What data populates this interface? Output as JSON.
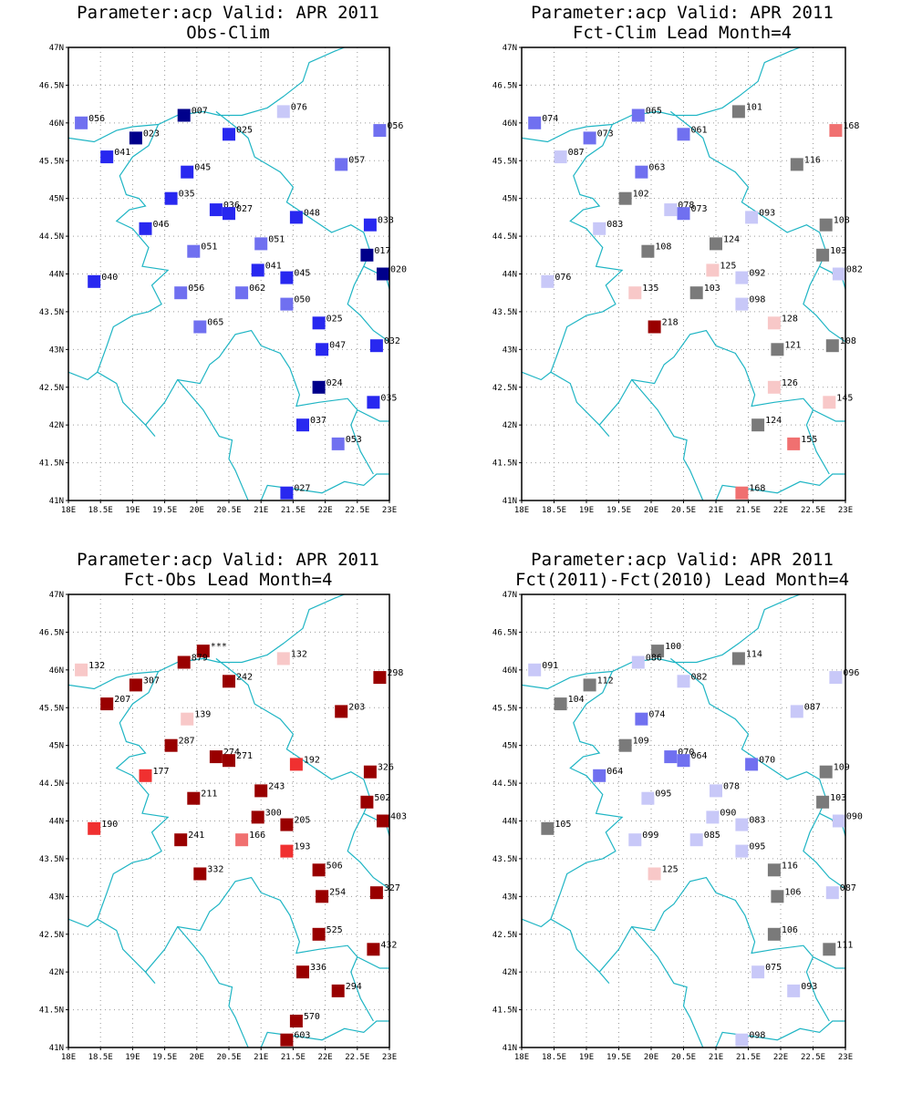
{
  "colors": {
    "coast": "#1fb5c4",
    "grid": "#9a9a9a",
    "frame": "#000000",
    "text": "#000000",
    "navy": "#00008b",
    "blue": "#2828f0",
    "mid_blue": "#7070f0",
    "light_blue": "#c8c8f8",
    "gray": "#7a7a7a",
    "light_pink": "#f8c8c8",
    "pink": "#f07070",
    "red": "#f03030",
    "dark_red": "#990000"
  },
  "axes": {
    "lon_ticks": [
      "18E",
      "18.5E",
      "19E",
      "19.5E",
      "20E",
      "20.5E",
      "21E",
      "21.5E",
      "22E",
      "22.5E",
      "23E"
    ],
    "lat_ticks": [
      "41N",
      "41.5N",
      "42N",
      "42.5N",
      "43N",
      "43.5N",
      "44N",
      "44.5N",
      "45N",
      "45.5N",
      "46N",
      "46.5N",
      "47N"
    ],
    "lon_range": [
      18,
      23
    ],
    "lat_range": [
      41,
      47
    ],
    "grid": true
  },
  "chart_data": [
    {
      "type": "map-station-plot",
      "title_line1": "Parameter:acp Valid: APR 2011",
      "title_line2": "Obs-Clim",
      "points": [
        {
          "lon": 18.2,
          "lat": 46.0,
          "color": "mid_blue",
          "label": "056"
        },
        {
          "lon": 19.05,
          "lat": 45.8,
          "color": "navy",
          "label": "023"
        },
        {
          "lon": 19.8,
          "lat": 46.1,
          "color": "navy",
          "label": "007"
        },
        {
          "lon": 20.5,
          "lat": 45.85,
          "color": "blue",
          "label": "025"
        },
        {
          "lon": 21.35,
          "lat": 46.15,
          "color": "light_blue",
          "label": "076"
        },
        {
          "lon": 22.85,
          "lat": 45.9,
          "color": "mid_blue",
          "label": "056"
        },
        {
          "lon": 18.6,
          "lat": 45.55,
          "color": "blue",
          "label": "041"
        },
        {
          "lon": 19.85,
          "lat": 45.35,
          "color": "blue",
          "label": "045"
        },
        {
          "lon": 22.25,
          "lat": 45.45,
          "color": "mid_blue",
          "label": "057"
        },
        {
          "lon": 19.6,
          "lat": 45.0,
          "color": "blue",
          "label": "035"
        },
        {
          "lon": 20.3,
          "lat": 44.85,
          "color": "blue",
          "label": "036"
        },
        {
          "lon": 20.5,
          "lat": 44.8,
          "color": "blue",
          "label": "027"
        },
        {
          "lon": 21.55,
          "lat": 44.75,
          "color": "blue",
          "label": "048"
        },
        {
          "lon": 22.7,
          "lat": 44.65,
          "color": "blue",
          "label": "033"
        },
        {
          "lon": 19.2,
          "lat": 44.6,
          "color": "blue",
          "label": "046"
        },
        {
          "lon": 19.95,
          "lat": 44.3,
          "color": "mid_blue",
          "label": "051"
        },
        {
          "lon": 21.0,
          "lat": 44.4,
          "color": "mid_blue",
          "label": "051"
        },
        {
          "lon": 22.65,
          "lat": 44.25,
          "color": "navy",
          "label": "017"
        },
        {
          "lon": 18.4,
          "lat": 43.9,
          "color": "blue",
          "label": "040"
        },
        {
          "lon": 20.95,
          "lat": 44.05,
          "color": "blue",
          "label": "041"
        },
        {
          "lon": 21.4,
          "lat": 43.95,
          "color": "blue",
          "label": "045"
        },
        {
          "lon": 22.9,
          "lat": 44.0,
          "color": "navy",
          "label": "020"
        },
        {
          "lon": 19.75,
          "lat": 43.75,
          "color": "mid_blue",
          "label": "056"
        },
        {
          "lon": 20.7,
          "lat": 43.75,
          "color": "mid_blue",
          "label": "062"
        },
        {
          "lon": 21.4,
          "lat": 43.6,
          "color": "mid_blue",
          "label": "050"
        },
        {
          "lon": 20.05,
          "lat": 43.3,
          "color": "mid_blue",
          "label": "065"
        },
        {
          "lon": 21.9,
          "lat": 43.35,
          "color": "blue",
          "label": "025"
        },
        {
          "lon": 21.95,
          "lat": 43.0,
          "color": "blue",
          "label": "047"
        },
        {
          "lon": 22.8,
          "lat": 43.05,
          "color": "blue",
          "label": "032"
        },
        {
          "lon": 21.9,
          "lat": 42.5,
          "color": "navy",
          "label": "024"
        },
        {
          "lon": 22.75,
          "lat": 42.3,
          "color": "blue",
          "label": "035"
        },
        {
          "lon": 21.65,
          "lat": 42.0,
          "color": "blue",
          "label": "037"
        },
        {
          "lon": 22.2,
          "lat": 41.75,
          "color": "mid_blue",
          "label": "053"
        },
        {
          "lon": 21.4,
          "lat": 41.1,
          "color": "blue",
          "label": "027"
        }
      ]
    },
    {
      "type": "map-station-plot",
      "title_line1": "Parameter:acp Valid: APR 2011",
      "title_line2": "Fct-Clim Lead Month=4",
      "points": [
        {
          "lon": 18.2,
          "lat": 46.0,
          "color": "mid_blue",
          "label": "074"
        },
        {
          "lon": 19.8,
          "lat": 46.1,
          "color": "mid_blue",
          "label": "065"
        },
        {
          "lon": 21.35,
          "lat": 46.15,
          "color": "gray",
          "label": "101"
        },
        {
          "lon": 22.85,
          "lat": 45.9,
          "color": "pink",
          "label": "168"
        },
        {
          "lon": 19.05,
          "lat": 45.8,
          "color": "mid_blue",
          "label": "073"
        },
        {
          "lon": 20.5,
          "lat": 45.85,
          "color": "mid_blue",
          "label": "061"
        },
        {
          "lon": 18.6,
          "lat": 45.55,
          "color": "light_blue",
          "label": "087"
        },
        {
          "lon": 19.85,
          "lat": 45.35,
          "color": "mid_blue",
          "label": "063"
        },
        {
          "lon": 22.25,
          "lat": 45.45,
          "color": "gray",
          "label": "116"
        },
        {
          "lon": 19.6,
          "lat": 45.0,
          "color": "gray",
          "label": "102"
        },
        {
          "lon": 20.3,
          "lat": 44.85,
          "color": "light_blue",
          "label": "078"
        },
        {
          "lon": 20.5,
          "lat": 44.8,
          "color": "mid_blue",
          "label": "073"
        },
        {
          "lon": 21.55,
          "lat": 44.75,
          "color": "light_blue",
          "label": "093"
        },
        {
          "lon": 22.7,
          "lat": 44.65,
          "color": "gray",
          "label": "108"
        },
        {
          "lon": 19.2,
          "lat": 44.6,
          "color": "light_blue",
          "label": "083"
        },
        {
          "lon": 21.0,
          "lat": 44.4,
          "color": "gray",
          "label": "124"
        },
        {
          "lon": 19.95,
          "lat": 44.3,
          "color": "gray",
          "label": "108"
        },
        {
          "lon": 22.65,
          "lat": 44.25,
          "color": "gray",
          "label": "103"
        },
        {
          "lon": 20.95,
          "lat": 44.05,
          "color": "light_pink",
          "label": "125"
        },
        {
          "lon": 21.4,
          "lat": 43.95,
          "color": "light_blue",
          "label": "092"
        },
        {
          "lon": 22.9,
          "lat": 44.0,
          "color": "light_blue",
          "label": "082"
        },
        {
          "lon": 18.4,
          "lat": 43.9,
          "color": "light_blue",
          "label": "076"
        },
        {
          "lon": 19.75,
          "lat": 43.75,
          "color": "light_pink",
          "label": "135"
        },
        {
          "lon": 20.7,
          "lat": 43.75,
          "color": "gray",
          "label": "103"
        },
        {
          "lon": 21.4,
          "lat": 43.6,
          "color": "light_blue",
          "label": "098"
        },
        {
          "lon": 20.05,
          "lat": 43.3,
          "color": "dark_red",
          "label": "218"
        },
        {
          "lon": 21.9,
          "lat": 43.35,
          "color": "light_pink",
          "label": "128"
        },
        {
          "lon": 21.95,
          "lat": 43.0,
          "color": "gray",
          "label": "121"
        },
        {
          "lon": 22.8,
          "lat": 43.05,
          "color": "gray",
          "label": "108"
        },
        {
          "lon": 21.9,
          "lat": 42.5,
          "color": "light_pink",
          "label": "126"
        },
        {
          "lon": 22.75,
          "lat": 42.3,
          "color": "light_pink",
          "label": "145"
        },
        {
          "lon": 21.65,
          "lat": 42.0,
          "color": "gray",
          "label": "124"
        },
        {
          "lon": 22.2,
          "lat": 41.75,
          "color": "pink",
          "label": "155"
        },
        {
          "lon": 21.4,
          "lat": 41.1,
          "color": "pink",
          "label": "168"
        }
      ]
    },
    {
      "type": "map-station-plot",
      "title_line1": "Parameter:acp Valid: APR 2011",
      "title_line2": "Fct-Obs Lead Month=4",
      "points": [
        {
          "lon": 20.1,
          "lat": 46.25,
          "color": "dark_red",
          "label": "***"
        },
        {
          "lon": 18.2,
          "lat": 46.0,
          "color": "light_pink",
          "label": "132"
        },
        {
          "lon": 19.8,
          "lat": 46.1,
          "color": "dark_red",
          "label": "879"
        },
        {
          "lon": 21.35,
          "lat": 46.15,
          "color": "light_pink",
          "label": "132"
        },
        {
          "lon": 22.85,
          "lat": 45.9,
          "color": "dark_red",
          "label": "298"
        },
        {
          "lon": 19.05,
          "lat": 45.8,
          "color": "dark_red",
          "label": "307"
        },
        {
          "lon": 20.5,
          "lat": 45.85,
          "color": "dark_red",
          "label": "242"
        },
        {
          "lon": 18.6,
          "lat": 45.55,
          "color": "dark_red",
          "label": "207"
        },
        {
          "lon": 19.85,
          "lat": 45.35,
          "color": "light_pink",
          "label": "139"
        },
        {
          "lon": 22.25,
          "lat": 45.45,
          "color": "dark_red",
          "label": "203"
        },
        {
          "lon": 19.6,
          "lat": 45.0,
          "color": "dark_red",
          "label": "287"
        },
        {
          "lon": 20.3,
          "lat": 44.85,
          "color": "dark_red",
          "label": "274"
        },
        {
          "lon": 20.5,
          "lat": 44.8,
          "color": "dark_red",
          "label": "271"
        },
        {
          "lon": 21.55,
          "lat": 44.75,
          "color": "red",
          "label": "192"
        },
        {
          "lon": 22.7,
          "lat": 44.65,
          "color": "dark_red",
          "label": "326"
        },
        {
          "lon": 19.2,
          "lat": 44.6,
          "color": "red",
          "label": "177"
        },
        {
          "lon": 21.0,
          "lat": 44.4,
          "color": "dark_red",
          "label": "243"
        },
        {
          "lon": 19.95,
          "lat": 44.3,
          "color": "dark_red",
          "label": "211"
        },
        {
          "lon": 22.65,
          "lat": 44.25,
          "color": "dark_red",
          "label": "502"
        },
        {
          "lon": 20.95,
          "lat": 44.05,
          "color": "dark_red",
          "label": "300"
        },
        {
          "lon": 21.4,
          "lat": 43.95,
          "color": "dark_red",
          "label": "205"
        },
        {
          "lon": 22.9,
          "lat": 44.0,
          "color": "dark_red",
          "label": "403"
        },
        {
          "lon": 18.4,
          "lat": 43.9,
          "color": "red",
          "label": "190"
        },
        {
          "lon": 19.75,
          "lat": 43.75,
          "color": "dark_red",
          "label": "241"
        },
        {
          "lon": 20.7,
          "lat": 43.75,
          "color": "pink",
          "label": "166"
        },
        {
          "lon": 21.4,
          "lat": 43.6,
          "color": "red",
          "label": "193"
        },
        {
          "lon": 20.05,
          "lat": 43.3,
          "color": "dark_red",
          "label": "332"
        },
        {
          "lon": 21.9,
          "lat": 43.35,
          "color": "dark_red",
          "label": "506"
        },
        {
          "lon": 21.95,
          "lat": 43.0,
          "color": "dark_red",
          "label": "254"
        },
        {
          "lon": 22.8,
          "lat": 43.05,
          "color": "dark_red",
          "label": "327"
        },
        {
          "lon": 21.9,
          "lat": 42.5,
          "color": "dark_red",
          "label": "525"
        },
        {
          "lon": 22.75,
          "lat": 42.3,
          "color": "dark_red",
          "label": "432"
        },
        {
          "lon": 21.65,
          "lat": 42.0,
          "color": "dark_red",
          "label": "336"
        },
        {
          "lon": 22.2,
          "lat": 41.75,
          "color": "dark_red",
          "label": "294"
        },
        {
          "lon": 21.55,
          "lat": 41.35,
          "color": "dark_red",
          "label": "570"
        },
        {
          "lon": 21.4,
          "lat": 41.1,
          "color": "dark_red",
          "label": "603"
        }
      ]
    },
    {
      "type": "map-station-plot",
      "title_line1": "Parameter:acp Valid: APR 2011",
      "title_line2": "Fct(2011)-Fct(2010) Lead Month=4",
      "points": [
        {
          "lon": 20.1,
          "lat": 46.25,
          "color": "gray",
          "label": "100"
        },
        {
          "lon": 18.2,
          "lat": 46.0,
          "color": "light_blue",
          "label": "091"
        },
        {
          "lon": 19.8,
          "lat": 46.1,
          "color": "light_blue",
          "label": "086"
        },
        {
          "lon": 21.35,
          "lat": 46.15,
          "color": "gray",
          "label": "114"
        },
        {
          "lon": 22.85,
          "lat": 45.9,
          "color": "light_blue",
          "label": "096"
        },
        {
          "lon": 19.05,
          "lat": 45.8,
          "color": "gray",
          "label": "112"
        },
        {
          "lon": 20.5,
          "lat": 45.85,
          "color": "light_blue",
          "label": "082"
        },
        {
          "lon": 18.6,
          "lat": 45.55,
          "color": "gray",
          "label": "104"
        },
        {
          "lon": 22.25,
          "lat": 45.45,
          "color": "light_blue",
          "label": "087"
        },
        {
          "lon": 19.85,
          "lat": 45.35,
          "color": "mid_blue",
          "label": "074"
        },
        {
          "lon": 19.6,
          "lat": 45.0,
          "color": "gray",
          "label": "109"
        },
        {
          "lon": 20.3,
          "lat": 44.85,
          "color": "mid_blue",
          "label": "070"
        },
        {
          "lon": 20.5,
          "lat": 44.8,
          "color": "mid_blue",
          "label": "064"
        },
        {
          "lon": 21.55,
          "lat": 44.75,
          "color": "mid_blue",
          "label": "070"
        },
        {
          "lon": 22.7,
          "lat": 44.65,
          "color": "gray",
          "label": "109"
        },
        {
          "lon": 19.2,
          "lat": 44.6,
          "color": "mid_blue",
          "label": "064"
        },
        {
          "lon": 21.0,
          "lat": 44.4,
          "color": "light_blue",
          "label": "078"
        },
        {
          "lon": 19.95,
          "lat": 44.3,
          "color": "light_blue",
          "label": "095"
        },
        {
          "lon": 22.65,
          "lat": 44.25,
          "color": "gray",
          "label": "103"
        },
        {
          "lon": 20.95,
          "lat": 44.05,
          "color": "light_blue",
          "label": "090"
        },
        {
          "lon": 21.4,
          "lat": 43.95,
          "color": "light_blue",
          "label": "083"
        },
        {
          "lon": 22.9,
          "lat": 44.0,
          "color": "light_blue",
          "label": "090"
        },
        {
          "lon": 18.4,
          "lat": 43.9,
          "color": "gray",
          "label": "105"
        },
        {
          "lon": 19.75,
          "lat": 43.75,
          "color": "light_blue",
          "label": "099"
        },
        {
          "lon": 20.7,
          "lat": 43.75,
          "color": "light_blue",
          "label": "085"
        },
        {
          "lon": 21.4,
          "lat": 43.6,
          "color": "light_blue",
          "label": "095"
        },
        {
          "lon": 20.05,
          "lat": 43.3,
          "color": "light_pink",
          "label": "125"
        },
        {
          "lon": 21.9,
          "lat": 43.35,
          "color": "gray",
          "label": "116"
        },
        {
          "lon": 21.95,
          "lat": 43.0,
          "color": "gray",
          "label": "106"
        },
        {
          "lon": 22.8,
          "lat": 43.05,
          "color": "light_blue",
          "label": "087"
        },
        {
          "lon": 21.9,
          "lat": 42.5,
          "color": "gray",
          "label": "106"
        },
        {
          "lon": 22.75,
          "lat": 42.3,
          "color": "gray",
          "label": "111"
        },
        {
          "lon": 21.65,
          "lat": 42.0,
          "color": "light_blue",
          "label": "075"
        },
        {
          "lon": 22.2,
          "lat": 41.75,
          "color": "light_blue",
          "label": "093"
        },
        {
          "lon": 21.4,
          "lat": 41.1,
          "color": "light_blue",
          "label": "098"
        }
      ]
    }
  ]
}
